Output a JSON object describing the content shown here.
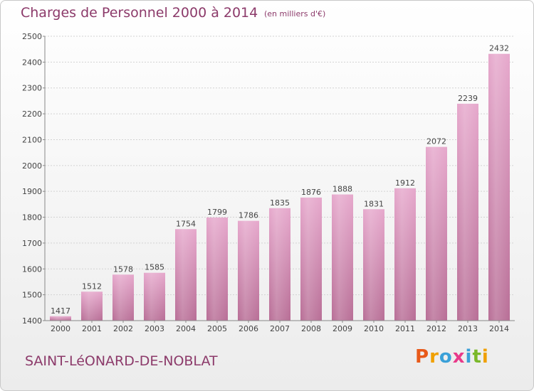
{
  "header": {
    "title": "Charges de Personnel 2000 à 2014",
    "unit_note": "(en milliers d'€)"
  },
  "footer": {
    "city": "SAINT-LéONARD-DE-NOBLAT",
    "logo": "Proxiti",
    "logo_colors": [
      "#e85a1a",
      "#f0a000",
      "#3aa0d8",
      "#e83a8a",
      "#3aa0d8",
      "#7ab82a",
      "#f0a000"
    ]
  },
  "chart_data": {
    "type": "bar",
    "categories": [
      "2000",
      "2001",
      "2002",
      "2003",
      "2004",
      "2005",
      "2006",
      "2007",
      "2008",
      "2009",
      "2010",
      "2011",
      "2012",
      "2013",
      "2014"
    ],
    "values": [
      1417,
      1512,
      1578,
      1585,
      1754,
      1799,
      1786,
      1835,
      1876,
      1888,
      1831,
      1912,
      2072,
      2239,
      2432
    ],
    "title": "Charges de Personnel 2000 à 2014",
    "subtitle": "(en milliers d'€)",
    "ylim": [
      1400,
      2500
    ],
    "yticks": [
      1400,
      1500,
      1600,
      1700,
      1800,
      1900,
      2000,
      2100,
      2200,
      2300,
      2400,
      2500
    ],
    "grid": true,
    "bar_color_top": "#e6a8cc",
    "bar_color_bottom": "#b86e96"
  }
}
